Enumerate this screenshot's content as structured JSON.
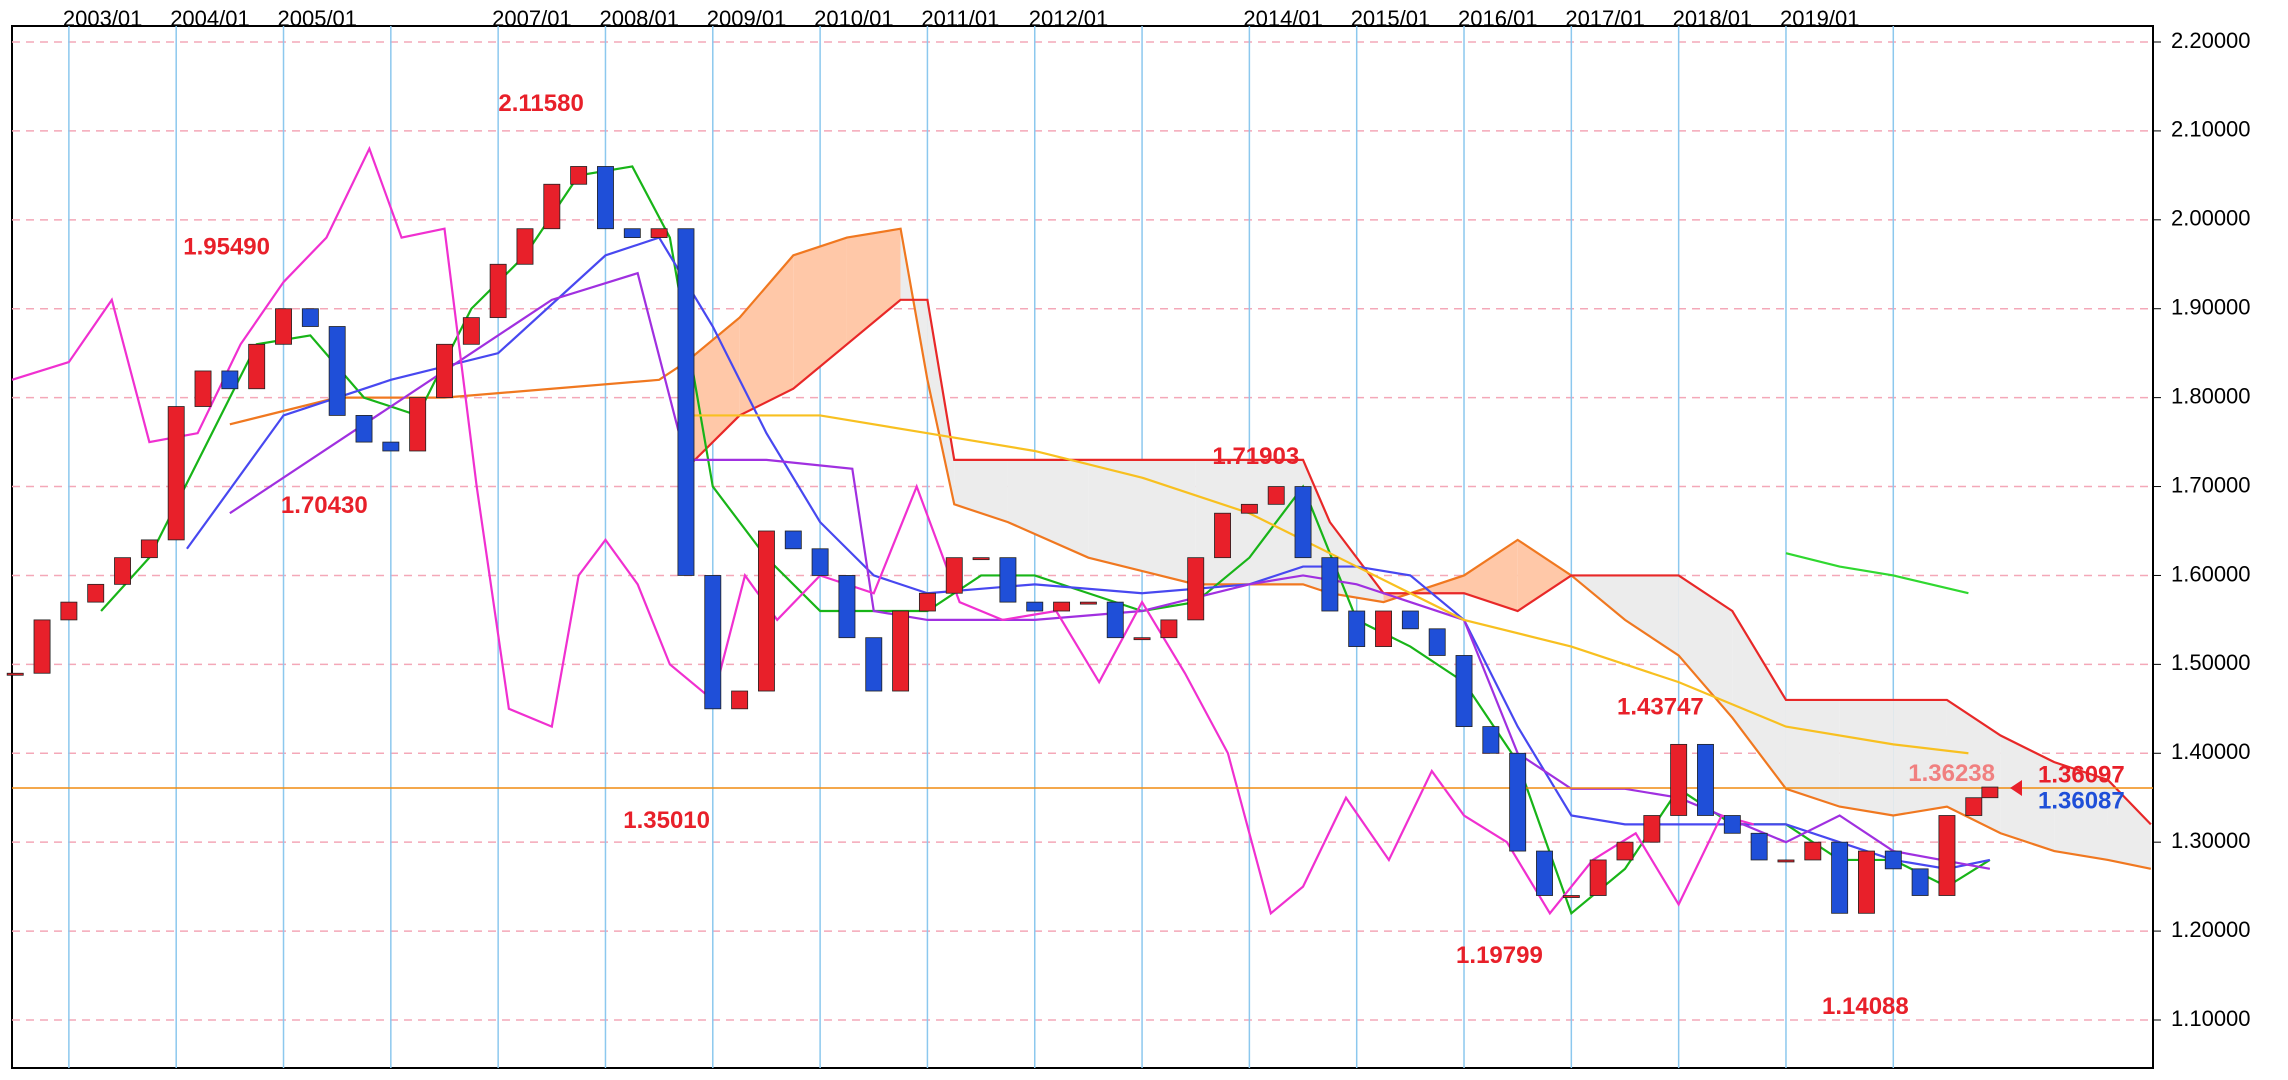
{
  "chart_data": {
    "type": "candlestick",
    "xlim": [
      2002.47,
      2022.42
    ],
    "ylim": [
      1.046,
      2.218
    ],
    "xticks": [
      {
        "value": 2003,
        "label": "2003/01"
      },
      {
        "value": 2004,
        "label": "2004/01"
      },
      {
        "value": 2005,
        "label": "2005/01"
      },
      {
        "value": 2006,
        "label": null
      },
      {
        "value": 2007,
        "label": "2007/01"
      },
      {
        "value": 2008,
        "label": "2008/01"
      },
      {
        "value": 2009,
        "label": "2009/01"
      },
      {
        "value": 2010,
        "label": "2010/01"
      },
      {
        "value": 2011,
        "label": "2011/01"
      },
      {
        "value": 2012,
        "label": "2012/01"
      },
      {
        "value": 2013,
        "label": null
      },
      {
        "value": 2014,
        "label": "2014/01"
      },
      {
        "value": 2015,
        "label": "2015/01"
      },
      {
        "value": 2016,
        "label": "2016/01"
      },
      {
        "value": 2017,
        "label": "2017/01"
      },
      {
        "value": 2018,
        "label": "2018/01"
      },
      {
        "value": 2019,
        "label": "2019/01"
      },
      {
        "value": 2020,
        "label": null
      }
    ],
    "yticks": [
      {
        "value": 1.1,
        "label": "1.10000"
      },
      {
        "value": 1.2,
        "label": "1.20000"
      },
      {
        "value": 1.3,
        "label": "1.30000"
      },
      {
        "value": 1.4,
        "label": "1.40000"
      },
      {
        "value": 1.5,
        "label": "1.50000"
      },
      {
        "value": 1.6,
        "label": "1.60000"
      },
      {
        "value": 1.7,
        "label": "1.70000"
      },
      {
        "value": 1.8,
        "label": "1.80000"
      },
      {
        "value": 1.9,
        "label": "1.90000"
      },
      {
        "value": 2.0,
        "label": "2.00000"
      },
      {
        "value": 2.1,
        "label": "2.10000"
      },
      {
        "value": 2.2,
        "label": "2.20000"
      }
    ],
    "grid": true,
    "price": {
      "up_color": "#e8202a",
      "down_color": "#1f4fd8",
      "x": [
        2002.5,
        2002.75,
        2003,
        2003.25,
        2003.5,
        2003.75,
        2004,
        2004.25,
        2004.5,
        2004.75,
        2005,
        2005.25,
        2005.5,
        2005.75,
        2006,
        2006.25,
        2006.5,
        2006.75,
        2007,
        2007.25,
        2007.5,
        2007.75,
        2008,
        2008.25,
        2008.5,
        2008.75,
        2009,
        2009.25,
        2009.5,
        2009.75,
        2010,
        2010.25,
        2010.5,
        2010.75,
        2011,
        2011.25,
        2011.5,
        2011.75,
        2012,
        2012.25,
        2012.5,
        2012.75,
        2013,
        2013.25,
        2013.5,
        2013.75,
        2014,
        2014.25,
        2014.5,
        2014.75,
        2015,
        2015.25,
        2015.5,
        2015.75,
        2016,
        2016.25,
        2016.5,
        2016.75,
        2017,
        2017.25,
        2017.5,
        2017.75,
        2018,
        2018.25,
        2018.5,
        2018.75,
        2019,
        2019.25,
        2019.5,
        2019.75,
        2020,
        2020.25,
        2020.5,
        2020.75,
        2020.9
      ],
      "close": [
        1.49,
        1.55,
        1.57,
        1.59,
        1.62,
        1.64,
        1.79,
        1.83,
        1.81,
        1.86,
        1.9,
        1.88,
        1.78,
        1.75,
        1.74,
        1.8,
        1.86,
        1.89,
        1.95,
        1.99,
        2.04,
        2.06,
        1.99,
        1.98,
        1.99,
        1.6,
        1.45,
        1.47,
        1.65,
        1.63,
        1.6,
        1.53,
        1.47,
        1.56,
        1.58,
        1.62,
        1.62,
        1.57,
        1.56,
        1.57,
        1.57,
        1.53,
        1.53,
        1.55,
        1.62,
        1.67,
        1.68,
        1.7,
        1.62,
        1.56,
        1.52,
        1.56,
        1.54,
        1.51,
        1.43,
        1.4,
        1.29,
        1.24,
        1.24,
        1.28,
        1.3,
        1.33,
        1.41,
        1.33,
        1.31,
        1.28,
        1.28,
        1.3,
        1.22,
        1.29,
        1.27,
        1.24,
        1.33,
        1.35,
        1.362
      ]
    },
    "cloud": {
      "up_fill": "#ffc8a8",
      "down_fill": "#ececec",
      "x": [
        2004.5,
        2005.5,
        2006.5,
        2007.5,
        2008.5,
        2008.75,
        2009.25,
        2009.75,
        2010.25,
        2010.75,
        2011,
        2011.25,
        2011.75,
        2012.5,
        2013.5,
        2014.5,
        2014.75,
        2015.25,
        2016,
        2016.5,
        2017,
        2017.5,
        2018,
        2018.5,
        2019,
        2019.5,
        2020,
        2020.5,
        2021,
        2021.5,
        2022,
        2022.4
      ],
      "span_a": {
        "color": "#f07820",
        "values": [
          1.77,
          1.8,
          1.8,
          1.81,
          1.82,
          1.84,
          1.89,
          1.96,
          1.98,
          1.99,
          1.82,
          1.68,
          1.66,
          1.62,
          1.59,
          1.59,
          1.58,
          1.57,
          1.6,
          1.64,
          1.6,
          1.55,
          1.51,
          1.44,
          1.36,
          1.34,
          1.33,
          1.34,
          1.31,
          1.29,
          1.28,
          1.27
        ]
      },
      "span_b": {
        "color": "#e82828",
        "values": [
          null,
          null,
          null,
          null,
          null,
          1.72,
          1.78,
          1.81,
          1.86,
          1.91,
          1.91,
          1.73,
          1.73,
          1.73,
          1.73,
          1.73,
          1.66,
          1.58,
          1.58,
          1.56,
          1.6,
          1.6,
          1.6,
          1.56,
          1.46,
          1.46,
          1.46,
          1.46,
          1.42,
          1.39,
          1.37,
          1.32
        ]
      }
    },
    "lines": [
      {
        "color": "#18b418",
        "x": [
          2003.3,
          2003.75,
          2004.25,
          2004.75,
          2005.25,
          2005.75,
          2006.25,
          2006.75,
          2007.25,
          2007.75,
          2008.25,
          2008.6,
          2009,
          2009.5,
          2010,
          2010.5,
          2011,
          2011.5,
          2012,
          2012.5,
          2013,
          2013.5,
          2014,
          2014.5,
          2015,
          2015.5,
          2016,
          2016.5,
          2017,
          2017.5,
          2018,
          2018.5,
          2019,
          2019.5,
          2020,
          2020.5,
          2020.9
        ],
        "values": [
          1.56,
          1.62,
          1.74,
          1.86,
          1.87,
          1.8,
          1.78,
          1.9,
          1.96,
          2.05,
          2.06,
          1.98,
          1.7,
          1.62,
          1.56,
          1.56,
          1.56,
          1.6,
          1.6,
          1.58,
          1.56,
          1.57,
          1.62,
          1.7,
          1.55,
          1.52,
          1.48,
          1.39,
          1.22,
          1.27,
          1.36,
          1.32,
          1.32,
          1.28,
          1.28,
          1.25,
          1.28
        ]
      },
      {
        "color": "#4848f0",
        "x": [
          2004.1,
          2005,
          2006,
          2007,
          2008,
          2008.5,
          2009,
          2009.5,
          2010,
          2010.5,
          2011,
          2012,
          2013,
          2014,
          2014.5,
          2015,
          2015.5,
          2016,
          2016.5,
          2017,
          2017.5,
          2018,
          2019,
          2019.5,
          2020,
          2020.5,
          2020.9
        ],
        "values": [
          1.63,
          1.78,
          1.82,
          1.85,
          1.96,
          1.98,
          1.88,
          1.76,
          1.66,
          1.6,
          1.58,
          1.59,
          1.58,
          1.59,
          1.61,
          1.61,
          1.6,
          1.55,
          1.43,
          1.33,
          1.32,
          1.32,
          1.32,
          1.3,
          1.28,
          1.27,
          1.28
        ]
      },
      {
        "color": "#a030e0",
        "x": [
          2004.5,
          2005.5,
          2006.5,
          2007.5,
          2008.3,
          2008.75,
          2009.5,
          2010.3,
          2010.5,
          2011,
          2012,
          2013,
          2014,
          2014.5,
          2015,
          2016,
          2016.5,
          2017,
          2017.5,
          2018,
          2019,
          2019.5,
          2020,
          2020.9
        ],
        "values": [
          1.67,
          1.75,
          1.83,
          1.91,
          1.94,
          1.73,
          1.73,
          1.72,
          1.56,
          1.55,
          1.55,
          1.56,
          1.59,
          1.6,
          1.59,
          1.55,
          1.4,
          1.36,
          1.36,
          1.35,
          1.3,
          1.33,
          1.29,
          1.27
        ]
      },
      {
        "color": "#f030d0",
        "x": [
          2002.47,
          2003,
          2003.4,
          2003.75,
          2004.2,
          2004.6,
          2005,
          2005.4,
          2005.8,
          2006.1,
          2006.5,
          2006.8,
          2007.1,
          2007.5,
          2007.75,
          2008,
          2008.3,
          2008.6,
          2009,
          2009.3,
          2009.6,
          2010,
          2010.5,
          2010.9,
          2011.3,
          2011.7,
          2012.2,
          2012.6,
          2013,
          2013.4,
          2013.8,
          2014.2,
          2014.5,
          2014.9,
          2015.3,
          2015.7,
          2016,
          2016.4,
          2016.8,
          2017.2,
          2017.6,
          2018,
          2018.4,
          2018.7
        ],
        "values": [
          1.82,
          1.84,
          1.91,
          1.75,
          1.76,
          1.86,
          1.93,
          1.98,
          2.08,
          1.98,
          1.99,
          1.7,
          1.45,
          1.43,
          1.6,
          1.64,
          1.59,
          1.5,
          1.46,
          1.6,
          1.55,
          1.6,
          1.58,
          1.7,
          1.57,
          1.55,
          1.56,
          1.48,
          1.57,
          1.49,
          1.4,
          1.22,
          1.25,
          1.35,
          1.28,
          1.38,
          1.33,
          1.3,
          1.22,
          1.28,
          1.31,
          1.23,
          1.33,
          1.32
        ]
      },
      {
        "color": "#f8c020",
        "x": [
          2008.8,
          2010,
          2011,
          2012,
          2013,
          2014,
          2015,
          2016,
          2017,
          2018,
          2019,
          2020,
          2020.7
        ],
        "values": [
          1.78,
          1.78,
          1.76,
          1.74,
          1.71,
          1.67,
          1.61,
          1.55,
          1.52,
          1.48,
          1.43,
          1.41,
          1.4
        ]
      },
      {
        "color": "#30d830",
        "x": [
          2019,
          2019.5,
          2020,
          2020.7
        ],
        "values": [
          1.625,
          1.61,
          1.6,
          1.58
        ]
      }
    ],
    "annotations": [
      {
        "text": "2.11580",
        "x": 2007.4,
        "value": 2.1158,
        "position": "above"
      },
      {
        "text": "1.95490",
        "x": 2004.47,
        "value": 1.9549,
        "position": "above"
      },
      {
        "text": "1.70430",
        "x": 2005.38,
        "value": 1.7043,
        "position": "below"
      },
      {
        "text": "1.35010",
        "x": 2008.57,
        "value": 1.3501,
        "position": "below"
      },
      {
        "text": "1.71903",
        "x": 2014.06,
        "value": 1.71903,
        "position": "above"
      },
      {
        "text": "1.43747",
        "x": 2017.83,
        "value": 1.43747,
        "position": "above"
      },
      {
        "text": "1.19799",
        "x": 2016.33,
        "value": 1.19799,
        "position": "below"
      },
      {
        "text": "1.14088",
        "x": 2019.74,
        "value": 1.14088,
        "position": "below"
      }
    ],
    "current_line": {
      "value": 1.36097,
      "color": "#f08c10"
    },
    "price_labels": [
      {
        "value": 1.36238,
        "label": "1.36238",
        "color": "#f08080"
      },
      {
        "value": 1.36097,
        "label": "1.36097",
        "color": "#e8202a"
      },
      {
        "value": 1.36087,
        "label": "1.36087",
        "color": "#1f4fd8"
      }
    ]
  }
}
